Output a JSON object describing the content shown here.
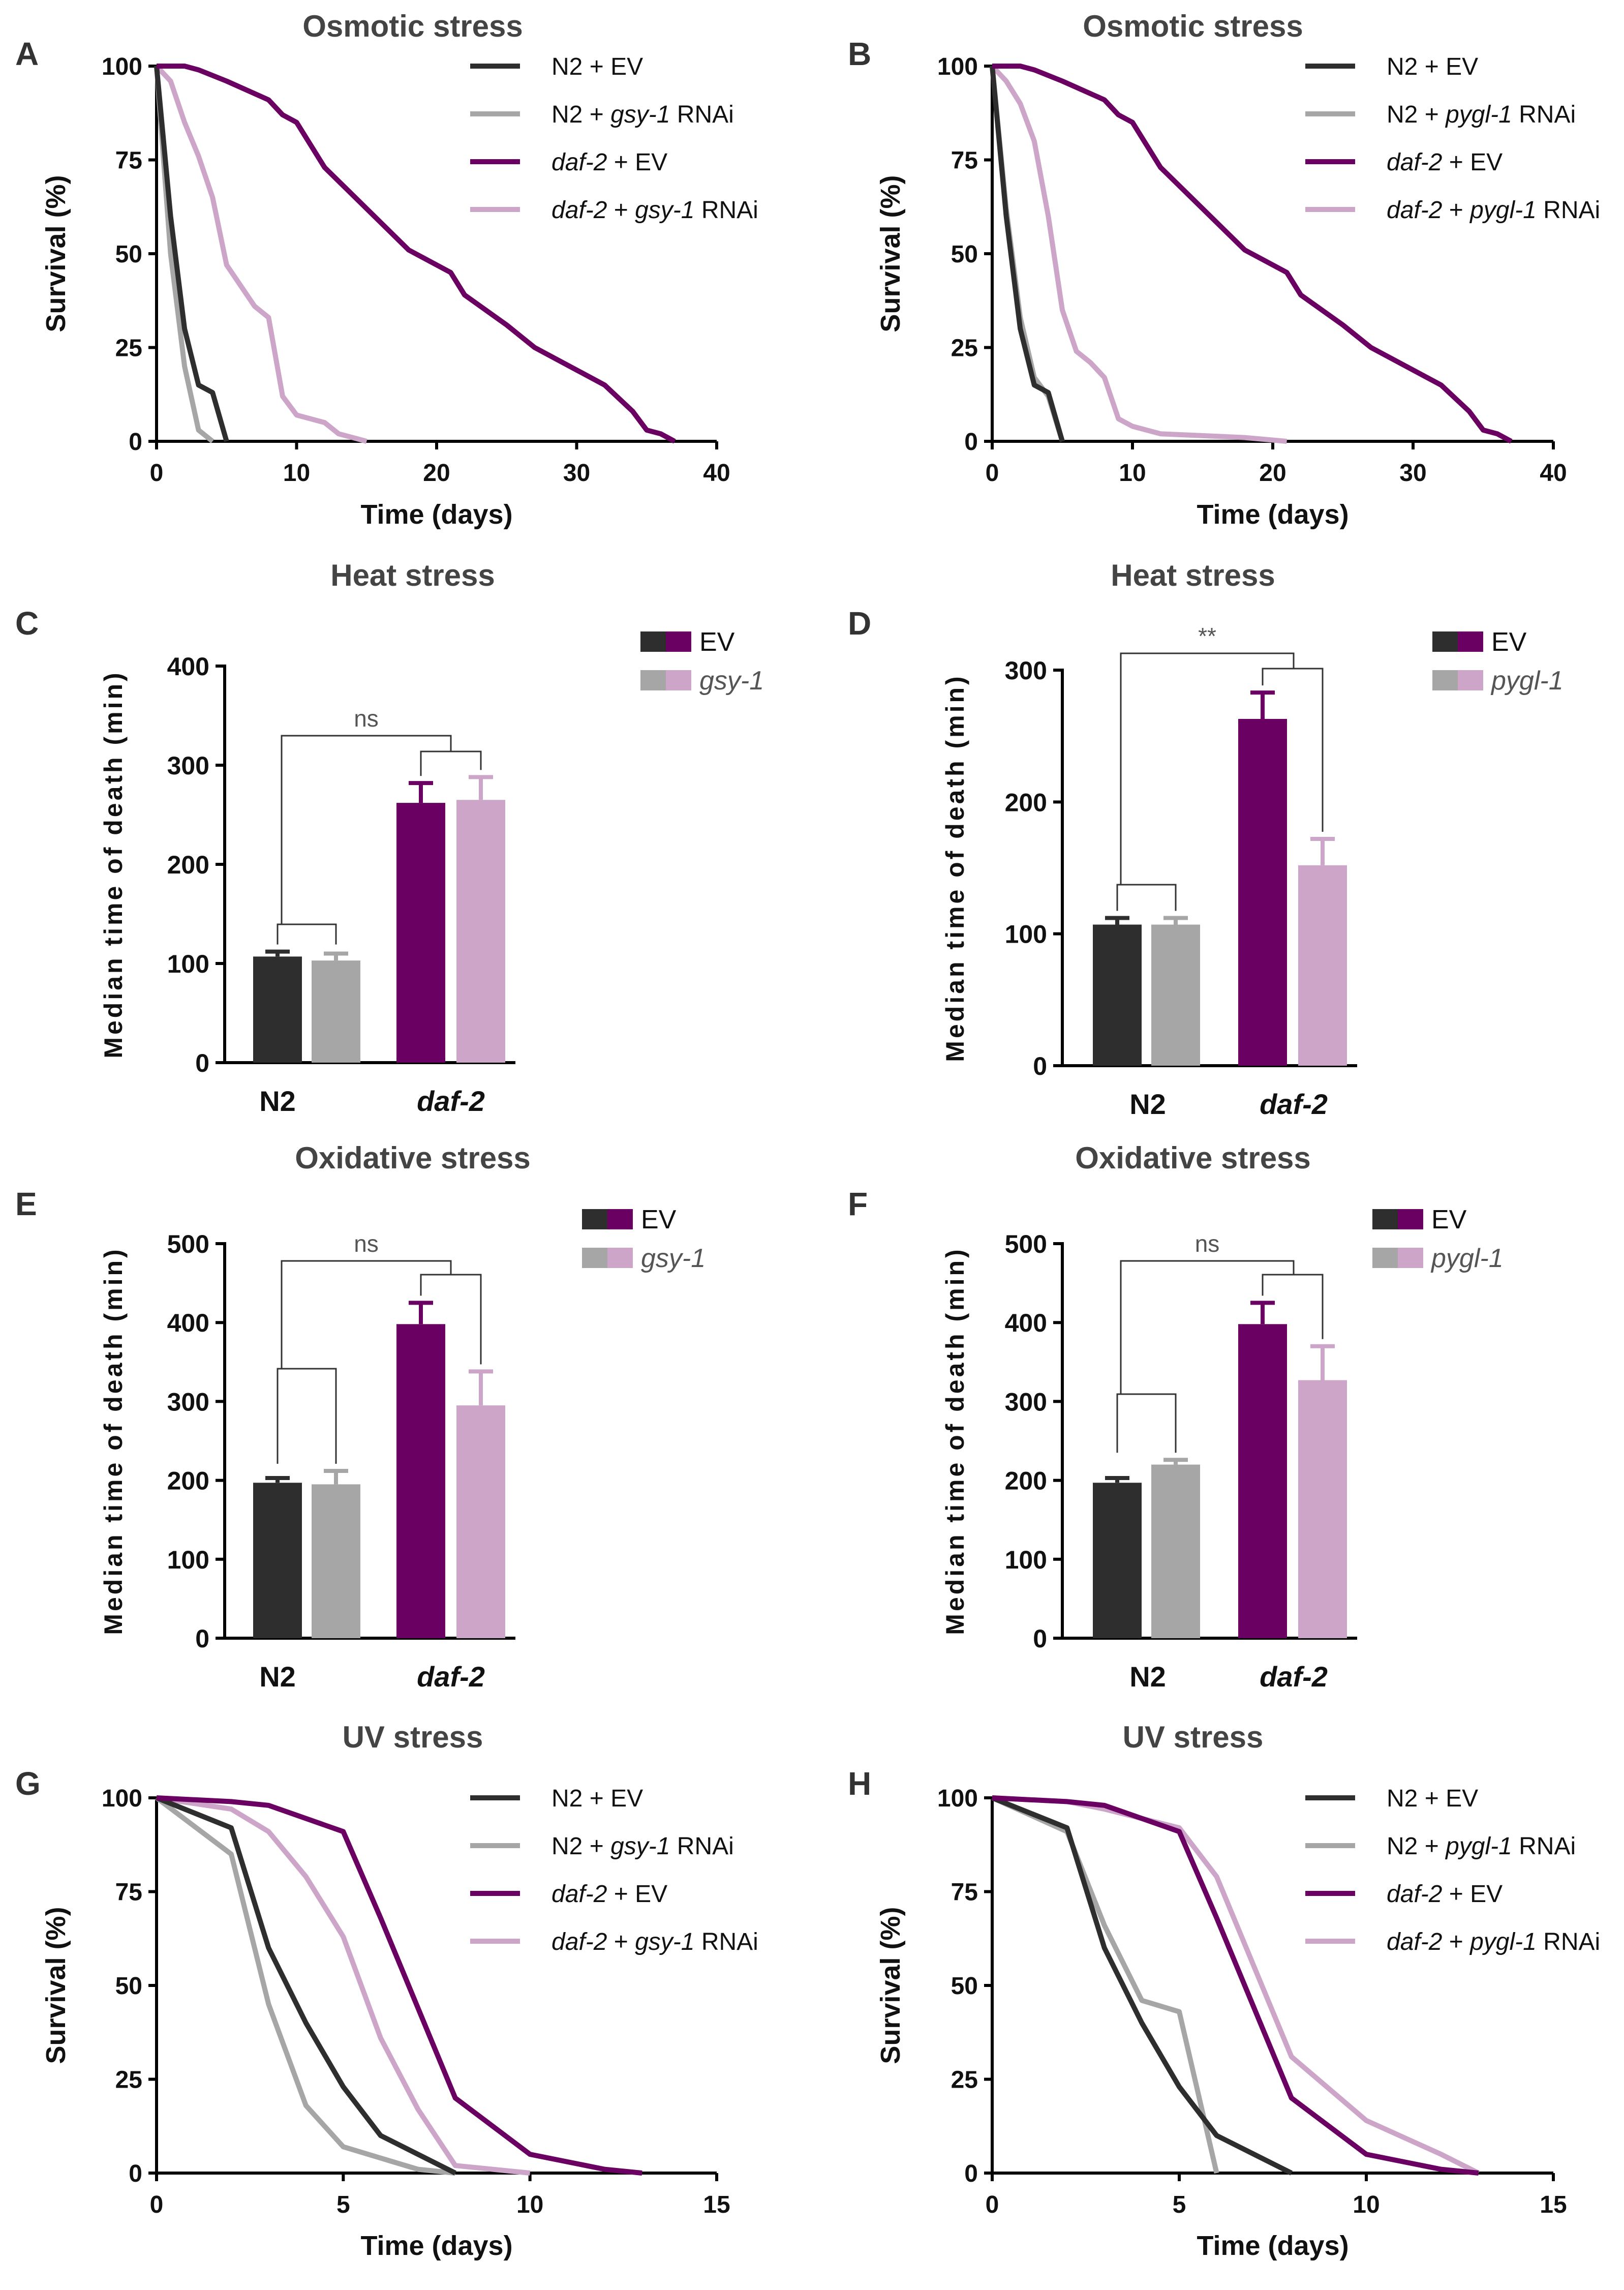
{
  "colors": {
    "n2_ev": "#2e2e2e",
    "n2_rnai": "#a6a6a6",
    "daf2_ev": "#6b0063",
    "daf2_rnai": "#cca5c9",
    "bracket": "#333333"
  },
  "chart_data": [
    {
      "panel": "A",
      "type": "line",
      "title": "Osmotic stress",
      "xlabel": "Time (days)",
      "ylabel": "Survival (%)",
      "xlim": [
        0,
        40
      ],
      "ylim": [
        0,
        100
      ],
      "xticks": [
        0,
        10,
        20,
        30,
        40
      ],
      "yticks": [
        0,
        25,
        50,
        75,
        100
      ],
      "rnai": "gsy-1",
      "series": [
        {
          "name": "N2 + EV",
          "parts": [
            {
              "t": "N2 + EV",
              "i": false
            }
          ],
          "color_key": "n2_ev",
          "x": [
            0,
            1,
            2,
            3,
            4,
            5
          ],
          "y": [
            100,
            60,
            30,
            15,
            13,
            0
          ]
        },
        {
          "name": "N2 + gsy-1 RNAi",
          "parts": [
            {
              "t": "N2 + ",
              "i": false
            },
            {
              "t": "gsy-1",
              "i": true
            },
            {
              "t": " RNAi",
              "i": false
            }
          ],
          "color_key": "n2_rnai",
          "x": [
            0,
            1,
            2,
            3,
            4
          ],
          "y": [
            100,
            50,
            20,
            3,
            0
          ]
        },
        {
          "name": "daf-2 + EV",
          "parts": [
            {
              "t": "daf-2",
              "i": true
            },
            {
              "t": " + EV",
              "i": false
            }
          ],
          "color_key": "daf2_ev",
          "x": [
            0,
            2,
            3,
            5,
            8,
            9,
            10,
            12,
            15,
            18,
            21,
            22,
            25,
            27,
            30,
            32,
            34,
            35,
            36,
            37
          ],
          "y": [
            100,
            100,
            99,
            96,
            91,
            87,
            85,
            73,
            62,
            51,
            45,
            39,
            31,
            25,
            19,
            15,
            8,
            3,
            2,
            0
          ]
        },
        {
          "name": "daf-2 + gsy-1 RNAi",
          "parts": [
            {
              "t": "daf-2",
              "i": true
            },
            {
              "t": " + ",
              "i": false
            },
            {
              "t": "gsy-1",
              "i": true
            },
            {
              "t": " RNAi",
              "i": false
            }
          ],
          "color_key": "daf2_rnai",
          "x": [
            0,
            1,
            2,
            3,
            4,
            5,
            7,
            8,
            9,
            10,
            12,
            13,
            15
          ],
          "y": [
            100,
            96,
            85,
            76,
            65,
            47,
            36,
            33,
            12,
            7,
            5,
            2,
            0
          ]
        }
      ]
    },
    {
      "panel": "B",
      "type": "line",
      "title": "Osmotic stress",
      "xlabel": "Time (days)",
      "ylabel": "Survival (%)",
      "xlim": [
        0,
        40
      ],
      "ylim": [
        0,
        100
      ],
      "xticks": [
        0,
        10,
        20,
        30,
        40
      ],
      "yticks": [
        0,
        25,
        50,
        75,
        100
      ],
      "rnai": "pygl-1",
      "series": [
        {
          "name": "N2 + EV",
          "parts": [
            {
              "t": "N2 + EV",
              "i": false
            }
          ],
          "color_key": "n2_ev",
          "x": [
            0,
            1,
            2,
            3,
            4,
            5
          ],
          "y": [
            100,
            60,
            30,
            15,
            13,
            0
          ]
        },
        {
          "name": "N2 + pygl-1 RNAi",
          "parts": [
            {
              "t": "N2 + ",
              "i": false
            },
            {
              "t": "pygl-1",
              "i": true
            },
            {
              "t": " RNAi",
              "i": false
            }
          ],
          "color_key": "n2_rnai",
          "x": [
            0,
            1,
            2,
            3,
            4,
            5
          ],
          "y": [
            100,
            62,
            33,
            17,
            12,
            0
          ]
        },
        {
          "name": "daf-2 + EV",
          "parts": [
            {
              "t": "daf-2",
              "i": true
            },
            {
              "t": " + EV",
              "i": false
            }
          ],
          "color_key": "daf2_ev",
          "x": [
            0,
            2,
            3,
            5,
            8,
            9,
            10,
            12,
            15,
            18,
            21,
            22,
            25,
            27,
            30,
            32,
            34,
            35,
            36,
            37
          ],
          "y": [
            100,
            100,
            99,
            96,
            91,
            87,
            85,
            73,
            62,
            51,
            45,
            39,
            31,
            25,
            19,
            15,
            8,
            3,
            2,
            0
          ]
        },
        {
          "name": "daf-2 + pygl-1 RNAi",
          "parts": [
            {
              "t": "daf-2",
              "i": true
            },
            {
              "t": " + ",
              "i": false
            },
            {
              "t": "pygl-1",
              "i": true
            },
            {
              "t": " RNAi",
              "i": false
            }
          ],
          "color_key": "daf2_rnai",
          "x": [
            0,
            1,
            2,
            3,
            4,
            5,
            6,
            7,
            8,
            9,
            10,
            12,
            15,
            18,
            21
          ],
          "y": [
            100,
            96,
            90,
            80,
            60,
            35,
            24,
            21,
            17,
            6,
            4,
            2,
            1.5,
            1,
            0
          ]
        }
      ]
    },
    {
      "panel": "C",
      "type": "bar",
      "title": "Heat stress",
      "ylabel": "Median time of death (min)",
      "ylim": [
        0,
        400
      ],
      "yticks": [
        0,
        100,
        200,
        300,
        400
      ],
      "groups": [
        {
          "label": "N2",
          "italic": false
        },
        {
          "label": "daf-2",
          "italic": true
        }
      ],
      "legend": [
        {
          "label": "EV",
          "italic": false,
          "colors": [
            "n2_ev",
            "daf2_ev"
          ]
        },
        {
          "label": "gsy-1",
          "italic": true,
          "colors": [
            "n2_rnai",
            "daf2_rnai"
          ]
        }
      ],
      "bars": [
        {
          "group": "N2",
          "condition": "EV",
          "value": 107,
          "error": 5,
          "color_key": "n2_ev"
        },
        {
          "group": "N2",
          "condition": "gsy-1",
          "value": 103,
          "error": 7,
          "color_key": "n2_rnai"
        },
        {
          "group": "daf-2",
          "condition": "EV",
          "value": 262,
          "error": 20,
          "color_key": "daf2_ev"
        },
        {
          "group": "daf-2",
          "condition": "gsy-1",
          "value": 265,
          "error": 23,
          "color_key": "daf2_rnai"
        }
      ],
      "significance": "ns"
    },
    {
      "panel": "D",
      "type": "bar",
      "title": "Heat stress",
      "ylabel": "Median time of death (min)",
      "ylim": [
        0,
        300
      ],
      "yticks": [
        0,
        100,
        200,
        300
      ],
      "groups": [
        {
          "label": "N2",
          "italic": false
        },
        {
          "label": "daf-2",
          "italic": true
        }
      ],
      "legend": [
        {
          "label": "EV",
          "italic": false,
          "colors": [
            "n2_ev",
            "daf2_ev"
          ]
        },
        {
          "label": "pygl-1",
          "italic": true,
          "colors": [
            "n2_rnai",
            "daf2_rnai"
          ]
        }
      ],
      "bars": [
        {
          "group": "N2",
          "condition": "EV",
          "value": 107,
          "error": 5,
          "color_key": "n2_ev"
        },
        {
          "group": "N2",
          "condition": "pygl-1",
          "value": 107,
          "error": 5,
          "color_key": "n2_rnai"
        },
        {
          "group": "daf-2",
          "condition": "EV",
          "value": 263,
          "error": 20,
          "color_key": "daf2_ev"
        },
        {
          "group": "daf-2",
          "condition": "pygl-1",
          "value": 152,
          "error": 20,
          "color_key": "daf2_rnai"
        }
      ],
      "significance": "**"
    },
    {
      "panel": "E",
      "type": "bar",
      "title": "Oxidative stress",
      "ylabel": "Median time of death (min)",
      "ylim": [
        0,
        500
      ],
      "yticks": [
        0,
        100,
        200,
        300,
        400,
        500
      ],
      "groups": [
        {
          "label": "N2",
          "italic": false
        },
        {
          "label": "daf-2",
          "italic": true
        }
      ],
      "legend": [
        {
          "label": "EV",
          "italic": false,
          "colors": [
            "n2_ev",
            "daf2_ev"
          ]
        },
        {
          "label": "gsy-1",
          "italic": true,
          "colors": [
            "n2_rnai",
            "daf2_rnai"
          ]
        }
      ],
      "bars": [
        {
          "group": "N2",
          "condition": "EV",
          "value": 197,
          "error": 6,
          "color_key": "n2_ev"
        },
        {
          "group": "N2",
          "condition": "gsy-1",
          "value": 195,
          "error": 17,
          "color_key": "n2_rnai"
        },
        {
          "group": "daf-2",
          "condition": "EV",
          "value": 398,
          "error": 27,
          "color_key": "daf2_ev"
        },
        {
          "group": "daf-2",
          "condition": "gsy-1",
          "value": 295,
          "error": 43,
          "color_key": "daf2_rnai"
        }
      ],
      "significance": "ns"
    },
    {
      "panel": "F",
      "type": "bar",
      "title": "Oxidative stress",
      "ylabel": "Median time of death (min)",
      "ylim": [
        0,
        500
      ],
      "yticks": [
        0,
        100,
        200,
        300,
        400,
        500
      ],
      "groups": [
        {
          "label": "N2",
          "italic": false
        },
        {
          "label": "daf-2",
          "italic": true
        }
      ],
      "legend": [
        {
          "label": "EV",
          "italic": false,
          "colors": [
            "n2_ev",
            "daf2_ev"
          ]
        },
        {
          "label": "pygl-1",
          "italic": true,
          "colors": [
            "n2_rnai",
            "daf2_rnai"
          ]
        }
      ],
      "bars": [
        {
          "group": "N2",
          "condition": "EV",
          "value": 197,
          "error": 6,
          "color_key": "n2_ev"
        },
        {
          "group": "N2",
          "condition": "pygl-1",
          "value": 220,
          "error": 6,
          "color_key": "n2_rnai"
        },
        {
          "group": "daf-2",
          "condition": "EV",
          "value": 398,
          "error": 27,
          "color_key": "daf2_ev"
        },
        {
          "group": "daf-2",
          "condition": "pygl-1",
          "value": 327,
          "error": 43,
          "color_key": "daf2_rnai"
        }
      ],
      "significance": "ns"
    },
    {
      "panel": "G",
      "type": "line",
      "title": "UV stress",
      "xlabel": "Time (days)",
      "ylabel": "Survival (%)",
      "xlim": [
        0,
        15
      ],
      "ylim": [
        0,
        100
      ],
      "xticks": [
        0,
        5,
        10,
        15
      ],
      "yticks": [
        0,
        25,
        50,
        75,
        100
      ],
      "rnai": "gsy-1",
      "series": [
        {
          "name": "N2 + EV",
          "parts": [
            {
              "t": "N2 + EV",
              "i": false
            }
          ],
          "color_key": "n2_ev",
          "x": [
            0,
            2,
            3,
            4,
            5,
            6,
            7,
            8
          ],
          "y": [
            100,
            92,
            60,
            40,
            23,
            10,
            5,
            0
          ]
        },
        {
          "name": "N2 + gsy-1 RNAi",
          "parts": [
            {
              "t": "N2 + ",
              "i": false
            },
            {
              "t": "gsy-1",
              "i": true
            },
            {
              "t": " RNAi",
              "i": false
            }
          ],
          "color_key": "n2_rnai",
          "x": [
            0,
            2,
            3,
            4,
            5,
            6,
            7,
            8
          ],
          "y": [
            100,
            85,
            45,
            18,
            7,
            4,
            1,
            0
          ]
        },
        {
          "name": "daf-2 + EV",
          "parts": [
            {
              "t": "daf-2",
              "i": true
            },
            {
              "t": " + EV",
              "i": false
            }
          ],
          "color_key": "daf2_ev",
          "x": [
            0,
            2,
            3,
            5,
            6,
            8,
            10,
            12,
            13
          ],
          "y": [
            100,
            99,
            98,
            91,
            68,
            20,
            5,
            1,
            0
          ]
        },
        {
          "name": "daf-2 + gsy-1 RNAi",
          "parts": [
            {
              "t": "daf-2",
              "i": true
            },
            {
              "t": " + ",
              "i": false
            },
            {
              "t": "gsy-1",
              "i": true
            },
            {
              "t": " RNAi",
              "i": false
            }
          ],
          "color_key": "daf2_rnai",
          "x": [
            0,
            2,
            3,
            4,
            5,
            6,
            7,
            8,
            10
          ],
          "y": [
            100,
            97,
            91,
            79,
            63,
            36,
            17,
            2,
            0
          ]
        }
      ]
    },
    {
      "panel": "H",
      "type": "line",
      "title": "UV stress",
      "xlabel": "Time (days)",
      "ylabel": "Survival (%)",
      "xlim": [
        0,
        15
      ],
      "ylim": [
        0,
        100
      ],
      "xticks": [
        0,
        5,
        10,
        15
      ],
      "yticks": [
        0,
        25,
        50,
        75,
        100
      ],
      "rnai": "pygl-1",
      "series": [
        {
          "name": "N2 + EV",
          "parts": [
            {
              "t": "N2 + EV",
              "i": false
            }
          ],
          "color_key": "n2_ev",
          "x": [
            0,
            2,
            3,
            4,
            5,
            6,
            7,
            8
          ],
          "y": [
            100,
            92,
            60,
            40,
            23,
            10,
            5,
            0
          ]
        },
        {
          "name": "N2 + pygl-1 RNAi",
          "parts": [
            {
              "t": "N2 + ",
              "i": false
            },
            {
              "t": "pygl-1",
              "i": true
            },
            {
              "t": " RNAi",
              "i": false
            }
          ],
          "color_key": "n2_rnai",
          "x": [
            0,
            2,
            3,
            4,
            5,
            6
          ],
          "y": [
            100,
            91,
            66,
            46,
            43,
            0
          ]
        },
        {
          "name": "daf-2 + EV",
          "parts": [
            {
              "t": "daf-2",
              "i": true
            },
            {
              "t": " + EV",
              "i": false
            }
          ],
          "color_key": "daf2_ev",
          "x": [
            0,
            2,
            3,
            5,
            6,
            8,
            10,
            12,
            13
          ],
          "y": [
            100,
            99,
            98,
            91,
            68,
            20,
            5,
            1,
            0
          ]
        },
        {
          "name": "daf-2 + pygl-1 RNAi",
          "parts": [
            {
              "t": "daf-2",
              "i": true
            },
            {
              "t": " + ",
              "i": false
            },
            {
              "t": "pygl-1",
              "i": true
            },
            {
              "t": " RNAi",
              "i": false
            }
          ],
          "color_key": "daf2_rnai",
          "x": [
            0,
            2,
            3,
            5,
            6,
            8,
            10,
            12,
            13
          ],
          "y": [
            100,
            99,
            97,
            92,
            79,
            31,
            14,
            5,
            0
          ]
        }
      ]
    }
  ]
}
